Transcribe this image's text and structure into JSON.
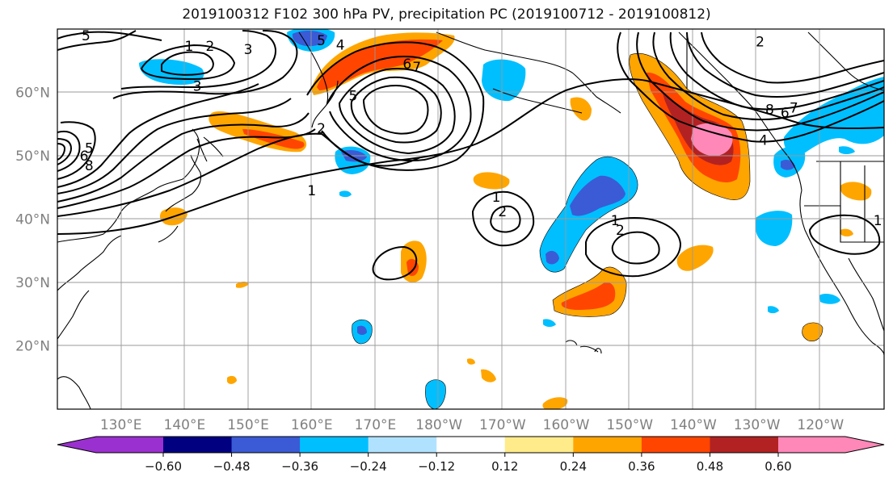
{
  "title": "2019100312 F102 300 hPa PV, precipitation PC (2019100712 - 2019100812)",
  "map": {
    "lon_range": [
      120,
      -105
    ],
    "lat_range": [
      10,
      70
    ],
    "lon_ticks": [
      {
        "lon": 130,
        "label": "130°E"
      },
      {
        "lon": 140,
        "label": "140°E"
      },
      {
        "lon": 150,
        "label": "150°E"
      },
      {
        "lon": 160,
        "label": "160°E"
      },
      {
        "lon": 170,
        "label": "170°E"
      },
      {
        "lon": 180,
        "label": "180°W"
      },
      {
        "lon": 190,
        "label": "170°W"
      },
      {
        "lon": 200,
        "label": "160°W"
      },
      {
        "lon": 210,
        "label": "150°W"
      },
      {
        "lon": 220,
        "label": "140°W"
      },
      {
        "lon": 230,
        "label": "130°W"
      },
      {
        "lon": 240,
        "label": "120°W"
      }
    ],
    "lat_ticks": [
      {
        "lat": 20,
        "label": "20°N"
      },
      {
        "lat": 30,
        "label": "30°N"
      },
      {
        "lat": 40,
        "label": "40°N"
      },
      {
        "lat": 50,
        "label": "50°N"
      },
      {
        "lat": 60,
        "label": "60°N"
      }
    ],
    "grid": true
  },
  "colorbar": {
    "colors": [
      "#9b30d0",
      "#000080",
      "#3b5bd6",
      "#00bfff",
      "#b0e2ff",
      "#ffffff",
      "#ffeb8a",
      "#ffa500",
      "#ff4500",
      "#b22222",
      "#ff88b8"
    ],
    "ticks": [
      "−0.60",
      "−0.48",
      "−0.36",
      "−0.24",
      "−0.12",
      "0.12",
      "0.24",
      "0.36",
      "0.48",
      "0.60"
    ],
    "extend": "both"
  },
  "contour_labels": [
    {
      "text": "5",
      "lon": 124.5,
      "lat": 69
    },
    {
      "text": "5",
      "lon": 125,
      "lat": 51.2
    },
    {
      "text": "6",
      "lon": 124.2,
      "lat": 50
    },
    {
      "text": "8",
      "lon": 125,
      "lat": 48.5
    },
    {
      "text": "1",
      "lon": 140.7,
      "lat": 67.3
    },
    {
      "text": "2",
      "lon": 144,
      "lat": 67.3
    },
    {
      "text": "3",
      "lon": 150,
      "lat": 66.8
    },
    {
      "text": "3",
      "lon": 142,
      "lat": 61
    },
    {
      "text": "5",
      "lon": 161.5,
      "lat": 68.2
    },
    {
      "text": "4",
      "lon": 164.5,
      "lat": 67.5
    },
    {
      "text": "2",
      "lon": 161.5,
      "lat": 54.3
    },
    {
      "text": "1",
      "lon": 160,
      "lat": 44.5
    },
    {
      "text": "5",
      "lon": 166.5,
      "lat": 59.5
    },
    {
      "text": "6",
      "lon": 175,
      "lat": 64.5
    },
    {
      "text": "7",
      "lon": 176.5,
      "lat": 64
    },
    {
      "text": "1",
      "lon": 189,
      "lat": 43.5
    },
    {
      "text": "2",
      "lon": 190,
      "lat": 41.2
    },
    {
      "text": "1",
      "lon": 207.7,
      "lat": 39.8
    },
    {
      "text": "2",
      "lon": 208.5,
      "lat": 38.3
    },
    {
      "text": "8",
      "lon": 232,
      "lat": 57.3
    },
    {
      "text": "6",
      "lon": 234.4,
      "lat": 56.8
    },
    {
      "text": "7",
      "lon": 235.8,
      "lat": 57.6
    },
    {
      "text": "4",
      "lon": 231,
      "lat": 52.5
    },
    {
      "text": "1",
      "lon": 249,
      "lat": 39.8
    },
    {
      "text": "2",
      "lon": 230.5,
      "lat": 68
    }
  ]
}
